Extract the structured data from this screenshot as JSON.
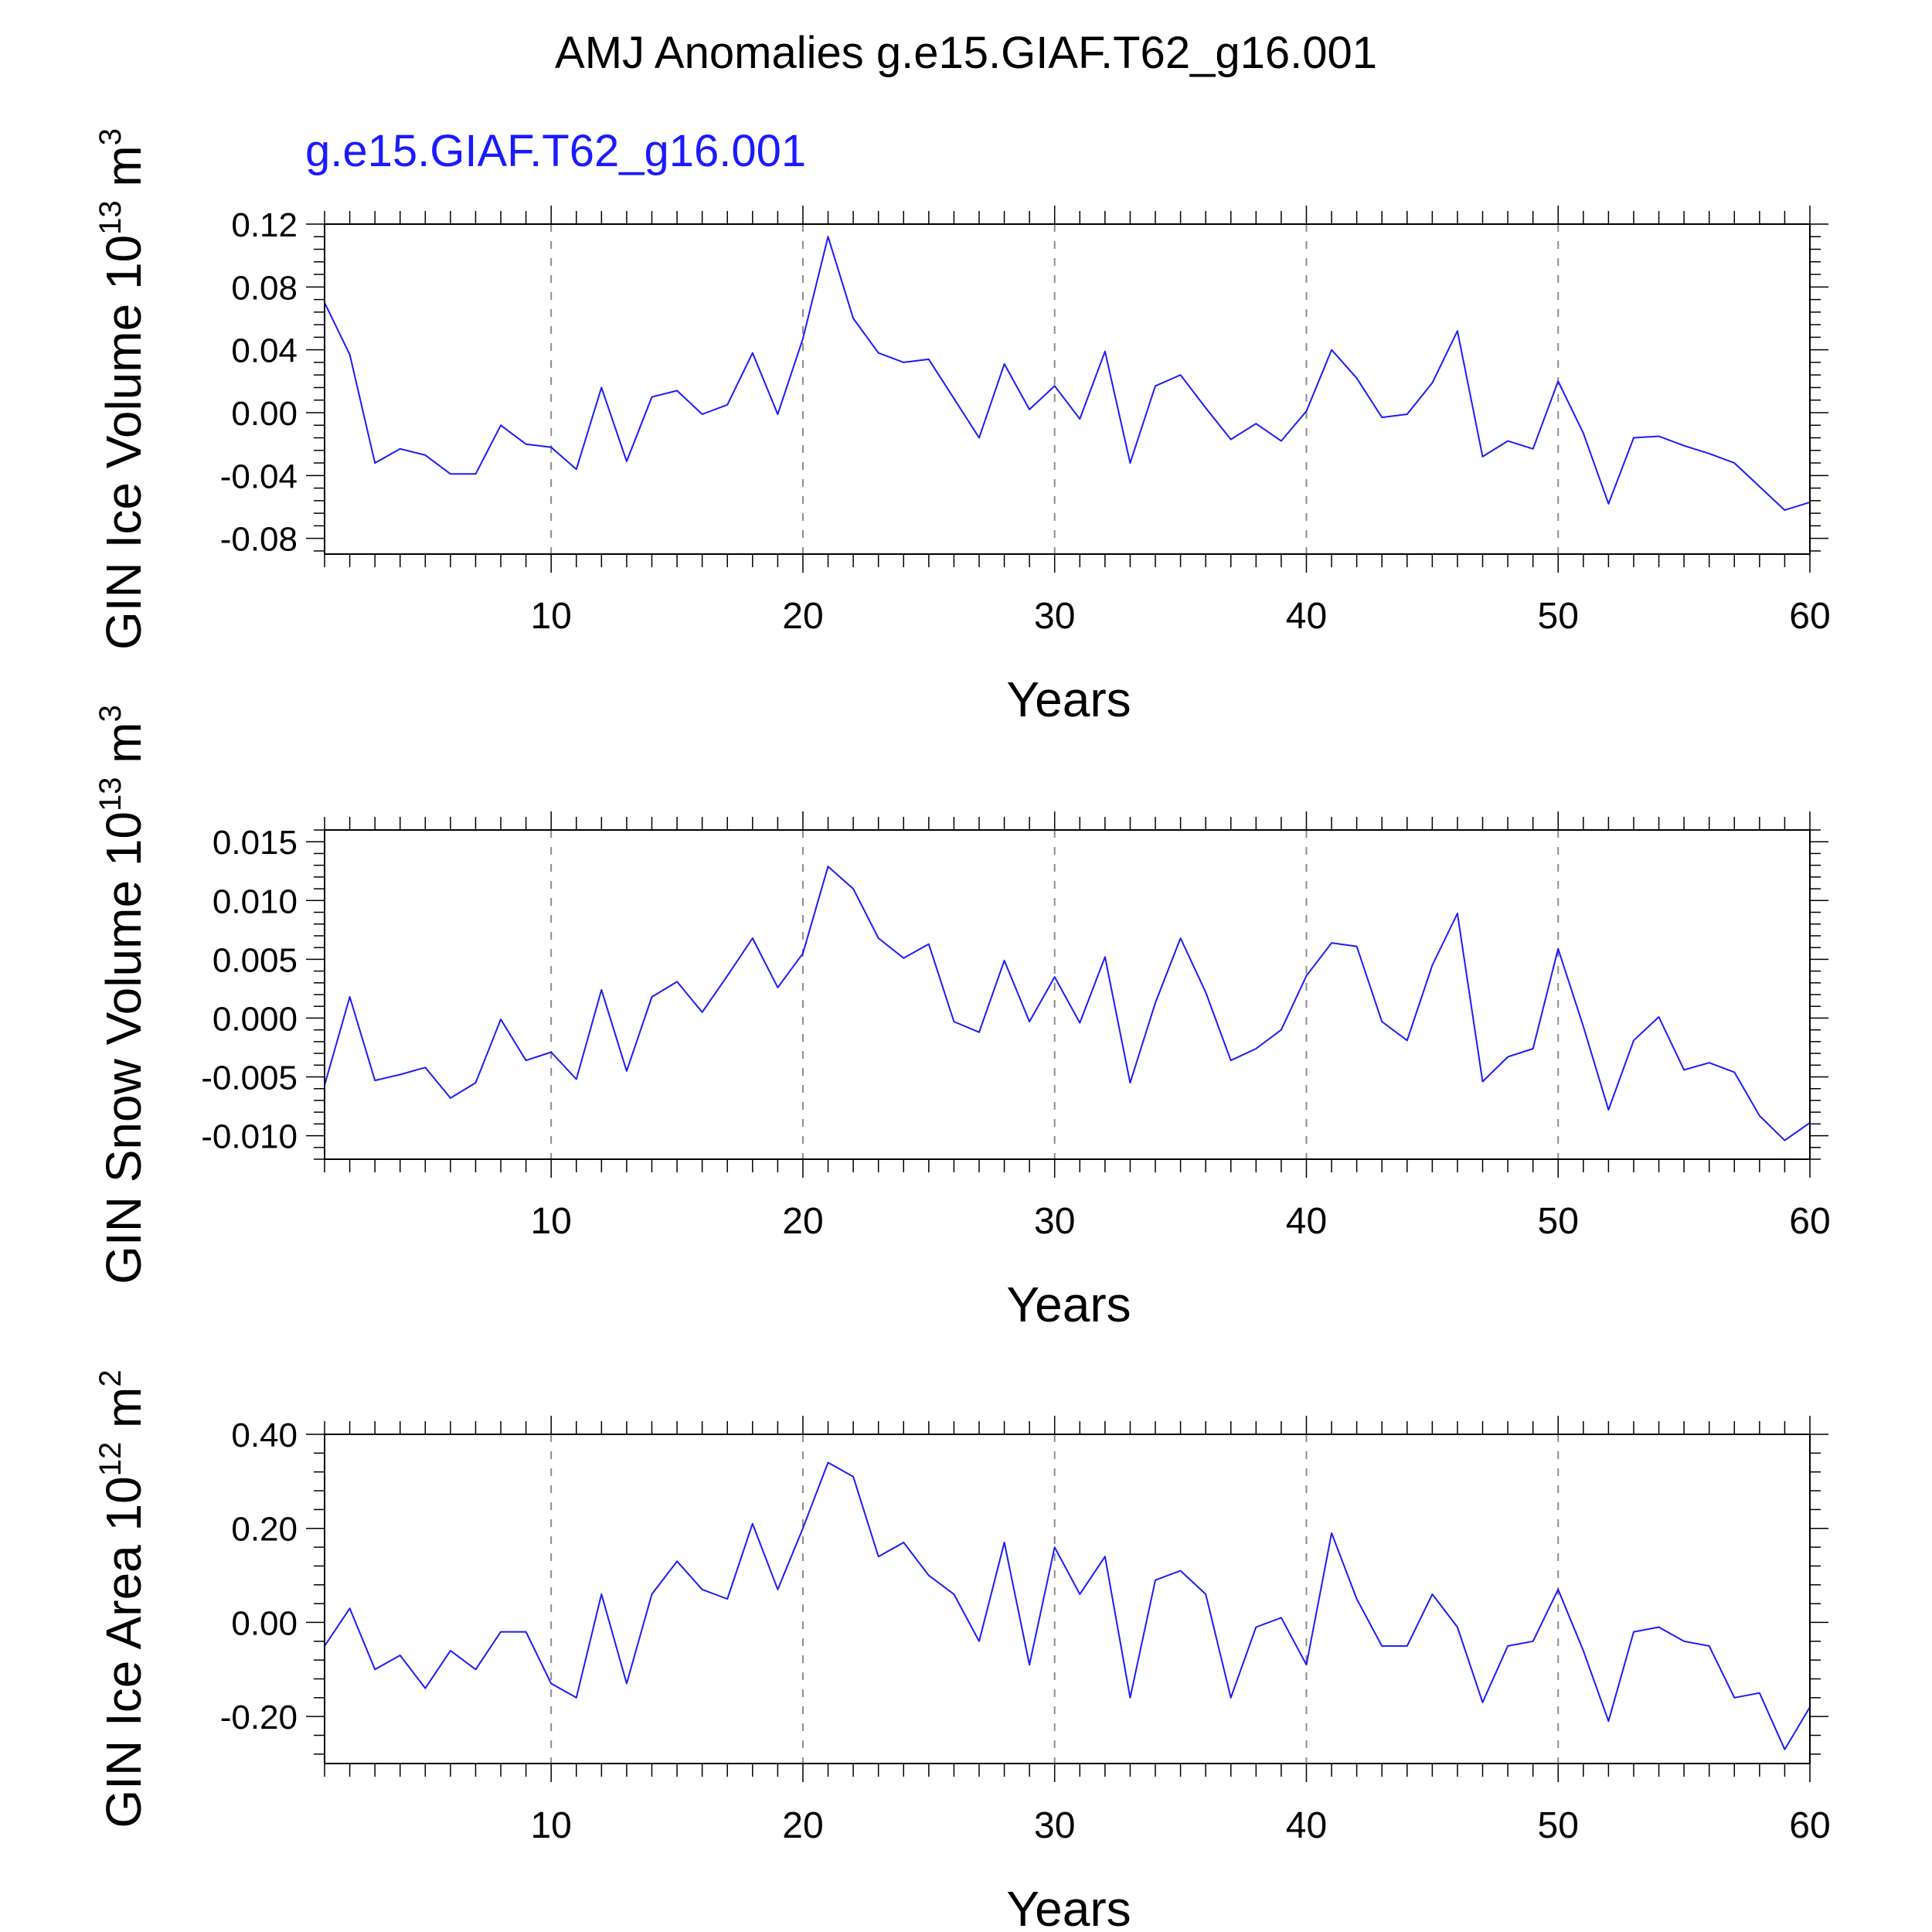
{
  "figure": {
    "title": "AMJ Anomalies g.e15.GIAF.T62_g16.001",
    "series_color": "#1a1aff",
    "axis_color": "#000000",
    "grid_color": "#8c8c8c"
  },
  "chart_data": [
    {
      "type": "line",
      "series_label": "g.e15.GIAF.T62_g16.001",
      "ylabel": "GIN Ice Volume 10",
      "ylabel_exp": "13",
      "ylabel_unit": " m",
      "ylabel_unit_exp": "3",
      "xlabel": "Years",
      "xlim": [
        1,
        60
      ],
      "ylim": [
        -0.09,
        0.12
      ],
      "x_ticks": [
        10,
        20,
        30,
        40,
        50,
        60
      ],
      "x_tick_labels": [
        "10",
        "20",
        "30",
        "40",
        "50",
        "60"
      ],
      "y_ticks": [
        -0.08,
        -0.04,
        0.0,
        0.04,
        0.08,
        0.12
      ],
      "y_tick_labels": [
        "-0.08",
        "-0.04",
        "0.00",
        "0.04",
        "0.08",
        "0.12"
      ],
      "grid": "dashed vertical lines at major x ticks",
      "series": [
        {
          "name": "g.e15.GIAF.T62_g16.001",
          "x": [
            1,
            2,
            3,
            4,
            5,
            6,
            7,
            8,
            9,
            10,
            11,
            12,
            13,
            14,
            15,
            16,
            17,
            18,
            19,
            20,
            21,
            22,
            23,
            24,
            25,
            26,
            27,
            28,
            29,
            30,
            31,
            32,
            33,
            34,
            35,
            36,
            37,
            38,
            39,
            40,
            41,
            42,
            43,
            44,
            45,
            46,
            47,
            48,
            49,
            50,
            51,
            52,
            53,
            54,
            55,
            56,
            57,
            58,
            59,
            60
          ],
          "values": [
            0.07,
            0.037,
            -0.032,
            -0.023,
            -0.027,
            -0.039,
            -0.039,
            -0.008,
            -0.02,
            -0.022,
            -0.036,
            0.016,
            -0.031,
            0.01,
            0.014,
            -0.001,
            0.005,
            0.038,
            -0.001,
            0.047,
            0.112,
            0.06,
            0.038,
            0.032,
            0.034,
            0.009,
            -0.016,
            0.031,
            0.002,
            0.017,
            -0.004,
            0.039,
            -0.032,
            0.017,
            0.024,
            0.003,
            -0.017,
            -0.007,
            -0.018,
            0.001,
            0.04,
            0.022,
            -0.003,
            -0.001,
            0.019,
            0.052,
            -0.028,
            -0.018,
            -0.023,
            0.02,
            -0.013,
            -0.058,
            -0.016,
            -0.015,
            -0.021,
            -0.026,
            -0.032,
            -0.047,
            -0.062,
            -0.057
          ]
        }
      ]
    },
    {
      "type": "line",
      "ylabel": "GIN Snow Volume 10",
      "ylabel_exp": "13",
      "ylabel_unit": " m",
      "ylabel_unit_exp": "3",
      "xlabel": "Years",
      "xlim": [
        1,
        60
      ],
      "ylim": [
        -0.012,
        0.016
      ],
      "x_ticks": [
        10,
        20,
        30,
        40,
        50,
        60
      ],
      "x_tick_labels": [
        "10",
        "20",
        "30",
        "40",
        "50",
        "60"
      ],
      "y_ticks": [
        -0.01,
        -0.005,
        0.0,
        0.005,
        0.01,
        0.015
      ],
      "y_tick_labels": [
        "-0.010",
        "-0.005",
        "0.000",
        "0.005",
        "0.010",
        "0.015"
      ],
      "grid": "dashed vertical lines at major x ticks",
      "series": [
        {
          "name": "g.e15.GIAF.T62_g16.001",
          "x": [
            1,
            2,
            3,
            4,
            5,
            6,
            7,
            8,
            9,
            10,
            11,
            12,
            13,
            14,
            15,
            16,
            17,
            18,
            19,
            20,
            21,
            22,
            23,
            24,
            25,
            26,
            27,
            28,
            29,
            30,
            31,
            32,
            33,
            34,
            35,
            36,
            37,
            38,
            39,
            40,
            41,
            42,
            43,
            44,
            45,
            46,
            47,
            48,
            49,
            50,
            51,
            52,
            53,
            54,
            55,
            56,
            57,
            58,
            59,
            60
          ],
          "values": [
            -0.0057,
            0.0018,
            -0.0053,
            -0.0048,
            -0.0042,
            -0.0068,
            -0.0055,
            -0.0001,
            -0.0036,
            -0.0029,
            -0.0052,
            0.0024,
            -0.0045,
            0.0018,
            0.0031,
            0.0005,
            0.0036,
            0.0068,
            0.0026,
            0.0055,
            0.0129,
            0.011,
            0.0068,
            0.0051,
            0.0063,
            -0.0003,
            -0.0012,
            0.0049,
            -0.0003,
            0.0035,
            -0.0004,
            0.0052,
            -0.0055,
            0.0013,
            0.0068,
            0.0022,
            -0.0036,
            -0.0026,
            -0.001,
            0.0036,
            0.0064,
            0.0061,
            -0.0003,
            -0.0019,
            0.0045,
            0.0089,
            -0.0054,
            -0.0033,
            -0.0026,
            0.0059,
            -0.0007,
            -0.0078,
            -0.0019,
            0.0001,
            -0.0044,
            -0.0038,
            -0.0046,
            -0.0083,
            -0.0104,
            -0.0089
          ]
        }
      ]
    },
    {
      "type": "line",
      "ylabel": "GIN Ice Area 10",
      "ylabel_exp": "12",
      "ylabel_unit": " m",
      "ylabel_unit_exp": "2",
      "xlabel": "Years",
      "xlim": [
        1,
        60
      ],
      "ylim": [
        -0.3,
        0.4
      ],
      "x_ticks": [
        10,
        20,
        30,
        40,
        50,
        60
      ],
      "x_tick_labels": [
        "10",
        "20",
        "30",
        "40",
        "50",
        "60"
      ],
      "y_ticks": [
        -0.2,
        0.0,
        0.2,
        0.4
      ],
      "y_tick_labels": [
        "-0.20",
        "0.00",
        "0.20",
        "0.40"
      ],
      "grid": "dashed vertical lines at major x ticks",
      "series": [
        {
          "name": "g.e15.GIAF.T62_g16.001",
          "x": [
            1,
            2,
            3,
            4,
            5,
            6,
            7,
            8,
            9,
            10,
            11,
            12,
            13,
            14,
            15,
            16,
            17,
            18,
            19,
            20,
            21,
            22,
            23,
            24,
            25,
            26,
            27,
            28,
            29,
            30,
            31,
            32,
            33,
            34,
            35,
            36,
            37,
            38,
            39,
            40,
            41,
            42,
            43,
            44,
            45,
            46,
            47,
            48,
            49,
            50,
            51,
            52,
            53,
            54,
            55,
            56,
            57,
            58,
            59,
            60
          ],
          "values": [
            -0.05,
            0.03,
            -0.1,
            -0.07,
            -0.14,
            -0.06,
            -0.1,
            -0.02,
            -0.02,
            -0.13,
            -0.16,
            0.06,
            -0.13,
            0.06,
            0.13,
            0.07,
            0.05,
            0.21,
            0.07,
            0.2,
            0.34,
            0.31,
            0.14,
            0.17,
            0.1,
            0.06,
            -0.04,
            0.17,
            -0.09,
            0.16,
            0.06,
            0.14,
            -0.16,
            0.09,
            0.11,
            0.06,
            -0.16,
            -0.01,
            0.01,
            -0.09,
            0.19,
            0.05,
            -0.05,
            -0.05,
            0.06,
            -0.01,
            -0.17,
            -0.05,
            -0.04,
            0.07,
            -0.06,
            -0.21,
            -0.02,
            -0.01,
            -0.04,
            -0.05,
            -0.16,
            -0.15,
            -0.27,
            -0.18
          ]
        }
      ]
    }
  ]
}
